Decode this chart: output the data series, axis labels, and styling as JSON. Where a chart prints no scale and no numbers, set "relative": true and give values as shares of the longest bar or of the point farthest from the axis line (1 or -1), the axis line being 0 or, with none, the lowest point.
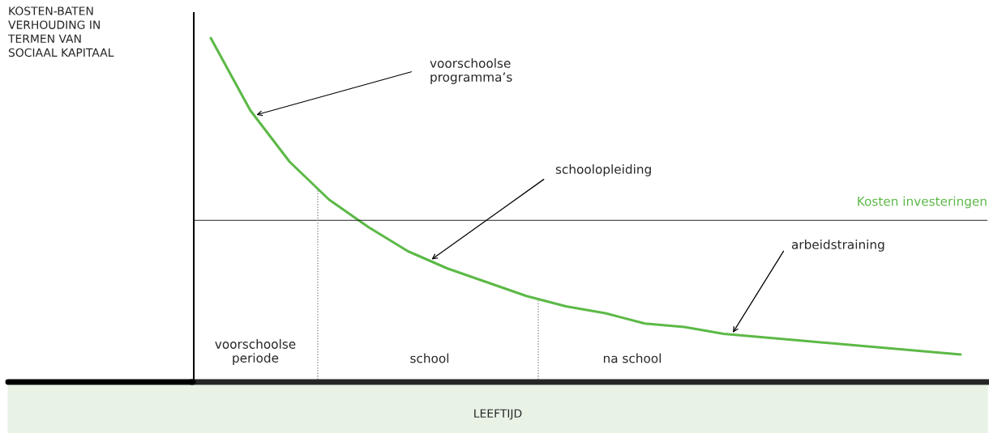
{
  "chart_data": {
    "type": "line",
    "relative": true,
    "xlabel": "LEEFTIJD",
    "categories": [
      null,
      null,
      null,
      null,
      null,
      null,
      null,
      null,
      null,
      null,
      null,
      null,
      null,
      null,
      null,
      null,
      null,
      null,
      null,
      null
    ],
    "series": [
      {
        "color": "#5cb947",
        "values": [
          1.0,
          0.79,
          0.64,
          0.53,
          0.45,
          0.38,
          0.33,
          0.29,
          0.25,
          0.22,
          0.2,
          0.17,
          0.16,
          0.14,
          0.13,
          0.12,
          0.11,
          0.1,
          0.09,
          0.08
        ]
      }
    ],
    "ref_lines": [
      {
        "axis": "y",
        "value": 0.47,
        "label": "Kosten investeringen"
      }
    ],
    "annotations": [
      "KOSTEN-BATEN\nVERHOUDING IN\nTERMEN VAN\nSOCIAAL KAPITAAL",
      "voorschoolse\nprogramma’s",
      "schoolopleiding",
      "arbeidstraining",
      "voorschoolse\nperiode",
      "school",
      "na school"
    ],
    "legend": false,
    "marker": "none",
    "line_style": "solid"
  }
}
